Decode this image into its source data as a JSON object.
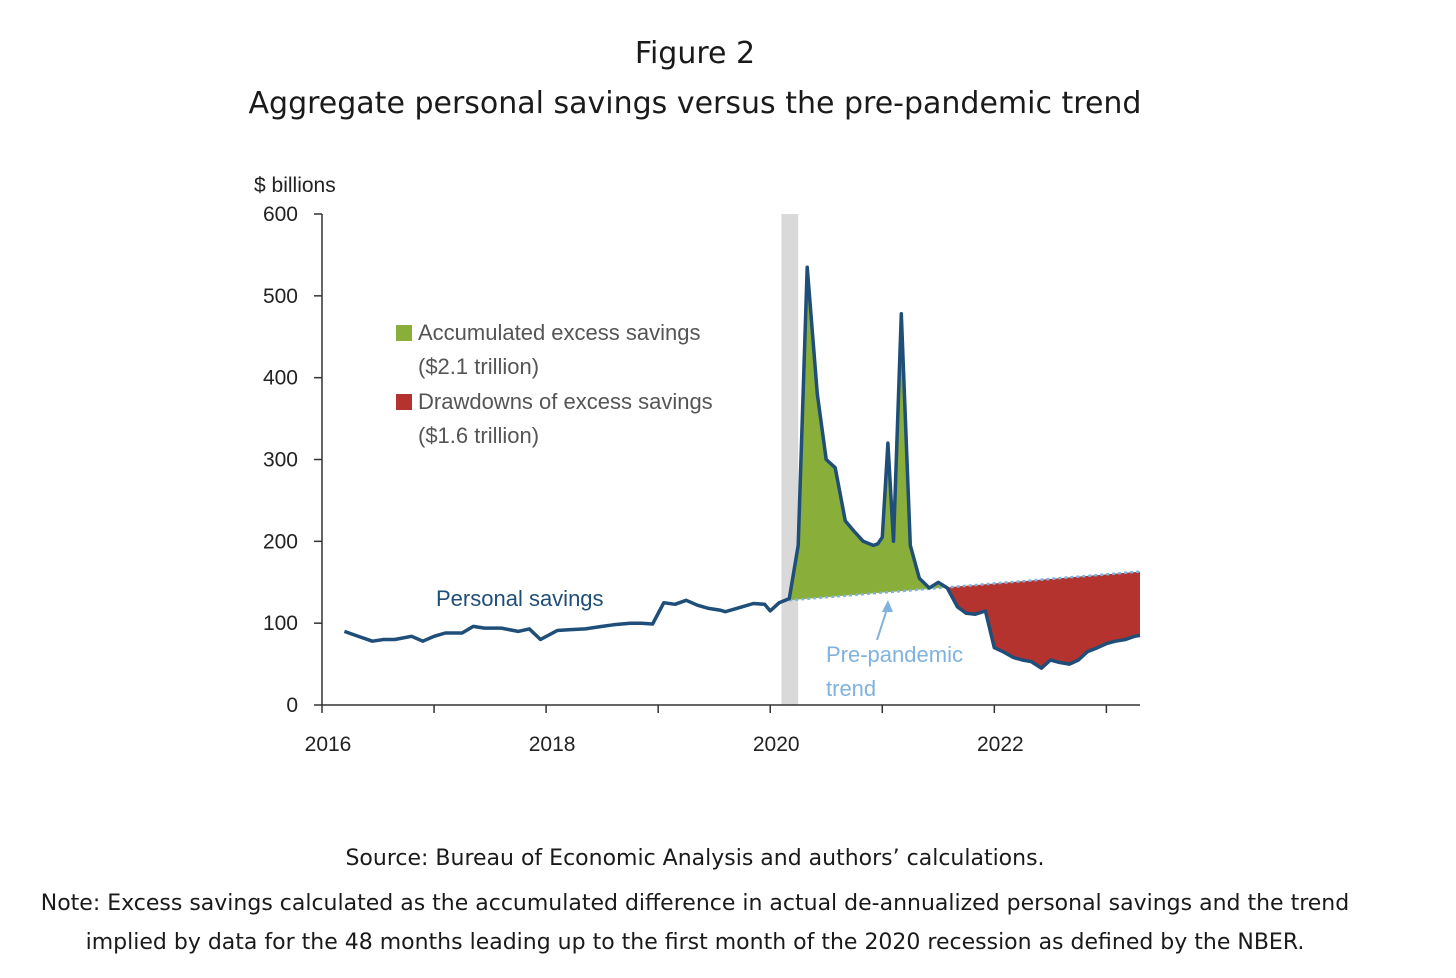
{
  "header": {
    "figure_label": "Figure 2",
    "title": "Aggregate personal savings versus the pre-pandemic trend"
  },
  "footer": {
    "source": "Source: Bureau of Economic Analysis and authors’ calculations.",
    "note": "Note: Excess savings calculated as the accumulated difference in actual de-annualized personal savings and the trend implied by data for the 48 months leading up to the first month of the 2020 recession as defined by the NBER."
  },
  "colors": {
    "line": "#1f4e79",
    "trend": "#7fb2dd",
    "excess": "#8aae3a",
    "drawdown": "#b5332e",
    "recession": "#d9d9d9",
    "axis": "#333333"
  },
  "chart_data": {
    "type": "line",
    "ylabel": "$ billions",
    "ylim": [
      0,
      600
    ],
    "yticks": [
      0,
      100,
      200,
      300,
      400,
      500,
      600
    ],
    "xlim": [
      2016,
      2023.3
    ],
    "xtick_labels": [
      "2016",
      "2018",
      "2020",
      "2022"
    ],
    "xtick_label_positions": [
      2016,
      2018,
      2020,
      2022
    ],
    "x_minor_ticks": [
      2017,
      2019,
      2021,
      2023
    ],
    "recession_band": [
      2020.1,
      2020.25
    ],
    "legend": [
      {
        "label": "Accumulated excess savings",
        "sub": "($2.1 trillion)",
        "color": "#8aae3a"
      },
      {
        "label": "Drawdowns of excess savings",
        "sub": "($1.6 trillion)",
        "color": "#b5332e"
      }
    ],
    "annotations": {
      "series_label": "Personal savings",
      "trend_label_line1": "Pre-pandemic",
      "trend_label_line2": "trend"
    },
    "trend": {
      "x": [
        2020.17,
        2023.3
      ],
      "y": [
        128,
        163
      ]
    },
    "series": [
      {
        "name": "Personal savings",
        "x": [
          2016.2,
          2016.3,
          2016.45,
          2016.55,
          2016.65,
          2016.8,
          2016.9,
          2017.0,
          2017.1,
          2017.25,
          2017.35,
          2017.45,
          2017.6,
          2017.75,
          2017.85,
          2017.95,
          2018.1,
          2018.2,
          2018.35,
          2018.5,
          2018.6,
          2018.75,
          2018.85,
          2018.95,
          2019.05,
          2019.15,
          2019.25,
          2019.35,
          2019.45,
          2019.55,
          2019.6,
          2019.75,
          2019.85,
          2019.95,
          2020.0,
          2020.08,
          2020.17,
          2020.25,
          2020.33,
          2020.42,
          2020.5,
          2020.58,
          2020.67,
          2020.75,
          2020.83,
          2020.92,
          2020.96,
          2021.0,
          2021.05,
          2021.1,
          2021.17,
          2021.25,
          2021.33,
          2021.42,
          2021.5,
          2021.58,
          2021.67,
          2021.75,
          2021.83,
          2021.92,
          2022.0,
          2022.08,
          2022.17,
          2022.25,
          2022.33,
          2022.42,
          2022.5,
          2022.58,
          2022.67,
          2022.75,
          2022.83,
          2022.92,
          2023.0,
          2023.08,
          2023.17,
          2023.25,
          2023.3
        ],
        "y": [
          90,
          85,
          78,
          80,
          80,
          84,
          78,
          84,
          88,
          88,
          96,
          94,
          94,
          90,
          93,
          80,
          91,
          92,
          93,
          96,
          98,
          100,
          100,
          99,
          125,
          123,
          128,
          122,
          118,
          116,
          114,
          120,
          124,
          123,
          115,
          125,
          130,
          195,
          535,
          380,
          300,
          290,
          225,
          212,
          200,
          195,
          197,
          205,
          320,
          200,
          478,
          195,
          155,
          143,
          150,
          143,
          120,
          112,
          111,
          115,
          70,
          65,
          58,
          55,
          53,
          45,
          55,
          52,
          50,
          55,
          65,
          70,
          75,
          78,
          80,
          84,
          85
        ]
      }
    ]
  }
}
